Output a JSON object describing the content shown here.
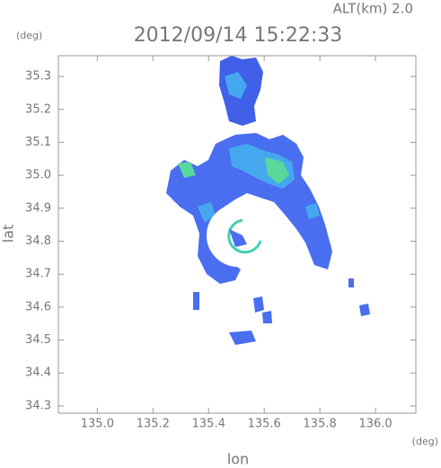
{
  "chart_data": {
    "type": "radar-map",
    "title": "2012/09/14 15:22:33",
    "annotation": "ALT(km) 2.0",
    "x_label": "lon",
    "y_label": "lat",
    "x_unit": "(deg)",
    "y_unit": "(deg)",
    "xlim": [
      134.86,
      136.145
    ],
    "ylim": [
      34.278,
      35.363
    ],
    "xticks": [
      {
        "value": 135.0,
        "label": "135.0"
      },
      135.2,
      135.4,
      135.6,
      135.8,
      {
        "value": 136.0,
        "label": "136.0"
      }
    ],
    "yticks": [
      34.3,
      34.4,
      34.5,
      34.6,
      34.7,
      34.8,
      34.9,
      {
        "value": 35.0,
        "label": "35.0"
      },
      35.1,
      35.2,
      35.3
    ]
  }
}
